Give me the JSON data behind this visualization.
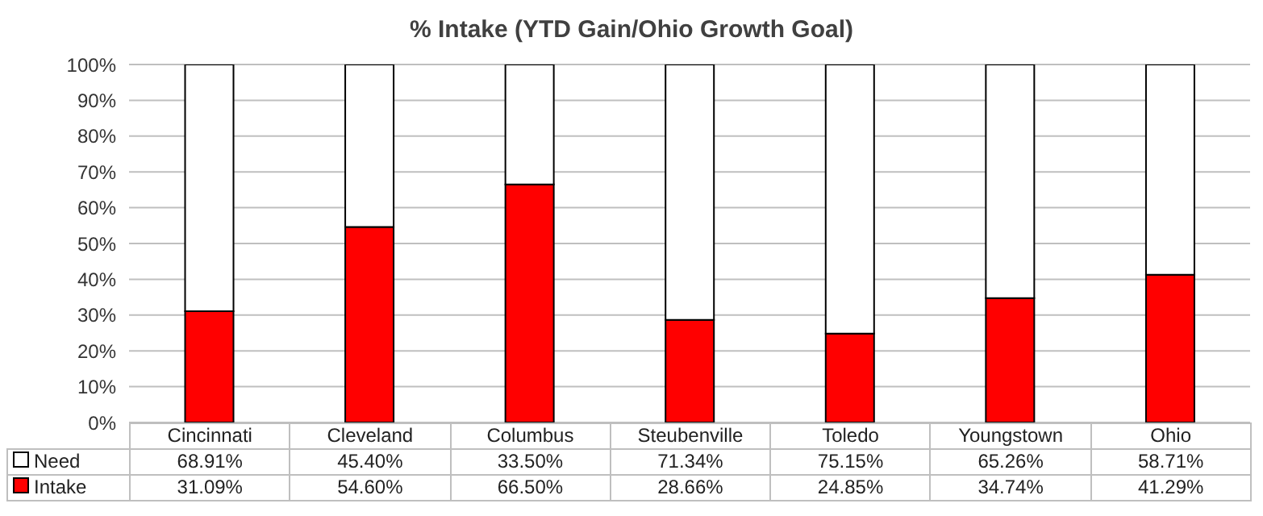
{
  "chart_data": {
    "type": "bar",
    "title": "% Intake (YTD Gain/Ohio Growth Goal)",
    "categories": [
      "Cincinnati",
      "Cleveland",
      "Columbus",
      "Steubenville",
      "Toledo",
      "Youngstown",
      "Ohio"
    ],
    "stacked": true,
    "series": [
      {
        "name": "Intake",
        "color": "#ff0000",
        "values": [
          31.09,
          54.6,
          66.5,
          28.66,
          24.85,
          34.74,
          41.29
        ],
        "value_labels": [
          "31.09%",
          "54.60%",
          "66.50%",
          "28.66%",
          "24.85%",
          "34.74%",
          "41.29%"
        ]
      },
      {
        "name": "Need",
        "color": "#ffffff",
        "values": [
          68.91,
          45.4,
          33.5,
          71.34,
          75.15,
          65.26,
          58.71
        ],
        "value_labels": [
          "68.91%",
          "45.40%",
          "33.50%",
          "71.34%",
          "75.15%",
          "65.26%",
          "58.71%"
        ]
      }
    ],
    "ylim": [
      0,
      100
    ],
    "yticks": [
      {
        "value": 0,
        "label": "0%"
      },
      {
        "value": 10,
        "label": "10%"
      },
      {
        "value": 20,
        "label": "20%"
      },
      {
        "value": 30,
        "label": "30%"
      },
      {
        "value": 40,
        "label": "40%"
      },
      {
        "value": 50,
        "label": "50%"
      },
      {
        "value": 60,
        "label": "60%"
      },
      {
        "value": 70,
        "label": "70%"
      },
      {
        "value": 80,
        "label": "80%"
      },
      {
        "value": 90,
        "label": "90%"
      },
      {
        "value": 100,
        "label": "100%"
      }
    ],
    "grid": "y",
    "legend": "bottom left"
  }
}
